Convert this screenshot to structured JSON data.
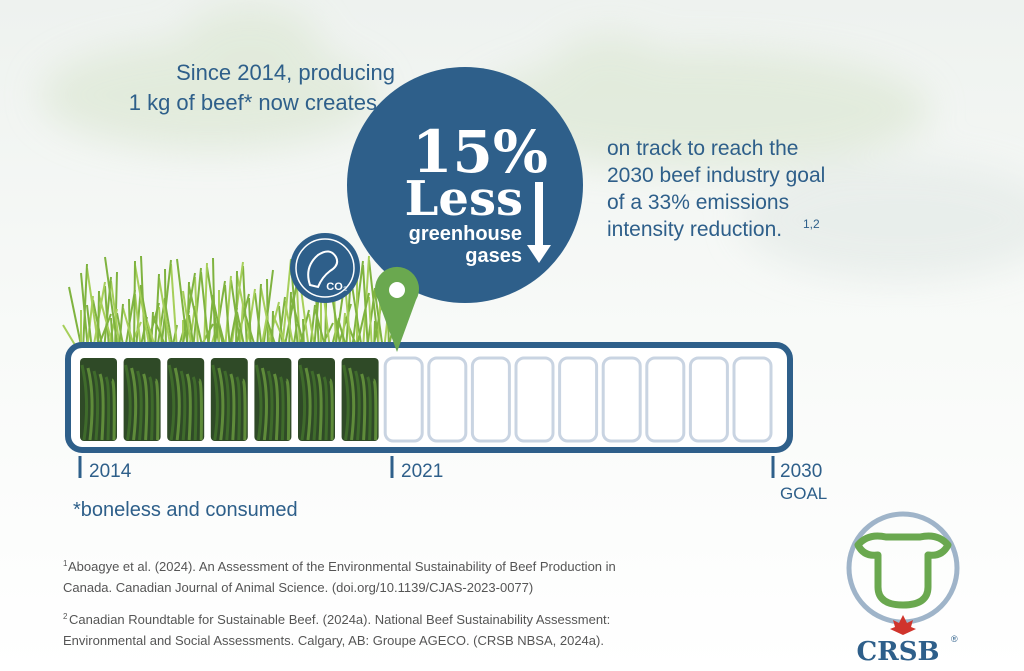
{
  "intro": [
    "Since 2014, producing",
    "1 kg of beef* now creates"
  ],
  "headline": {
    "percent": "15%",
    "word": "Less",
    "line1": "greenhouse",
    "line2": "gases"
  },
  "icon_label": "CO₂",
  "goal_text": {
    "lines": [
      "on track to reach the",
      "2030 beef industry goal",
      "of a 33% emissions",
      "intensity reduction."
    ],
    "note": "1,2"
  },
  "timeline": {
    "start": "2014",
    "now": "2021",
    "end": "2030",
    "end_sub": "GOAL"
  },
  "footnote": "*boneless and consumed",
  "references": [
    {
      "mark": "1",
      "lines": [
        "Aboagye et al. (2024). An Assessment of the Environmental Sustainability of Beef Production in",
        "Canada. Canadian Journal of Animal Science. (doi.org/10.1139/CJAS-2023-0077)"
      ]
    },
    {
      "mark": "2",
      "lines": [
        "Canadian Roundtable for Sustainable Beef. (2024a). National Beef Sustainability Assessment:",
        "Environmental and Social Assessments. Calgary, AB: Groupe AGECO. (CRSB NBSA, 2024a)."
      ]
    }
  ],
  "logo": {
    "name": "CRSB",
    "mark": "®"
  }
}
